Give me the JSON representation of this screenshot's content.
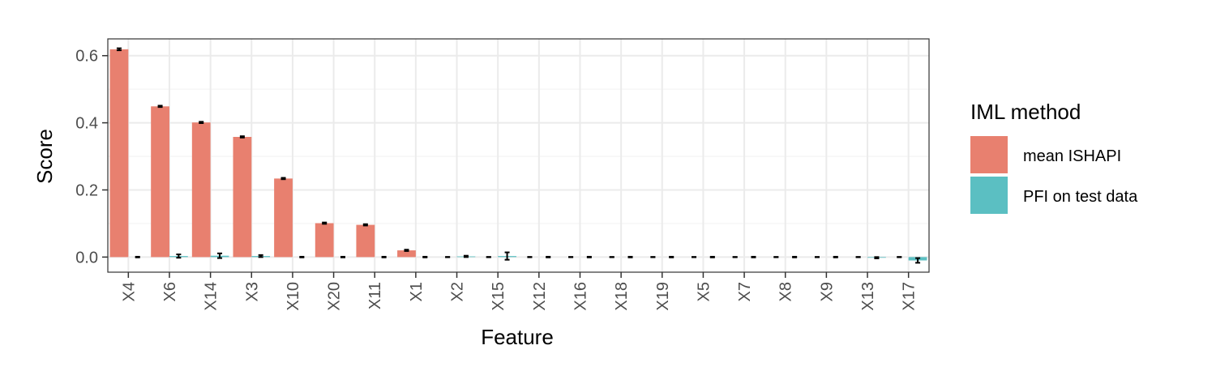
{
  "chart_data": {
    "type": "bar",
    "title": "",
    "xlabel": "Feature",
    "ylabel": "Score",
    "ylim": [
      -0.045,
      0.65
    ],
    "yticks": [
      0.0,
      0.2,
      0.4,
      0.6
    ],
    "ytick_labels": [
      "0.0",
      "0.2",
      "0.4",
      "0.6"
    ],
    "grid": true,
    "legend_position": "right",
    "categories": [
      "X4",
      "X6",
      "X14",
      "X3",
      "X10",
      "X20",
      "X11",
      "X1",
      "X2",
      "X15",
      "X12",
      "X16",
      "X18",
      "X19",
      "X5",
      "X7",
      "X8",
      "X9",
      "X13",
      "X17"
    ],
    "series": [
      {
        "name": "mean ISHAPI",
        "color": "#F8766D",
        "values": [
          0.619,
          0.449,
          0.401,
          0.358,
          0.234,
          0.101,
          0.096,
          0.02,
          0.0,
          0.0,
          0.0,
          0.0,
          0.0,
          0.0,
          0.0,
          0.0,
          0.0,
          0.0,
          0.0,
          0.0
        ],
        "error": [
          0.003,
          0.002,
          0.002,
          0.002,
          0.002,
          0.002,
          0.002,
          0.002,
          0.0005,
          0.0005,
          0.0005,
          0.0005,
          0.0005,
          0.0005,
          0.0005,
          0.0005,
          0.0005,
          0.0005,
          0.0005,
          0.0005
        ]
      },
      {
        "name": "PFI on test data",
        "color": "#00BFC4",
        "values": [
          0.0,
          0.003,
          0.004,
          0.003,
          0.0,
          0.0,
          0.0,
          0.0,
          0.002,
          0.003,
          0.0,
          0.0,
          0.0,
          0.0,
          0.0,
          0.0,
          0.0,
          0.0,
          -0.002,
          -0.01
        ],
        "error": [
          0.001,
          0.005,
          0.007,
          0.003,
          0.001,
          0.001,
          0.001,
          0.001,
          0.002,
          0.011,
          0.001,
          0.001,
          0.001,
          0.001,
          0.001,
          0.001,
          0.001,
          0.001,
          0.002,
          0.007
        ]
      }
    ],
    "legend": {
      "title": "IML method",
      "entries": [
        "mean ISHAPI",
        "PFI on test data"
      ]
    }
  }
}
